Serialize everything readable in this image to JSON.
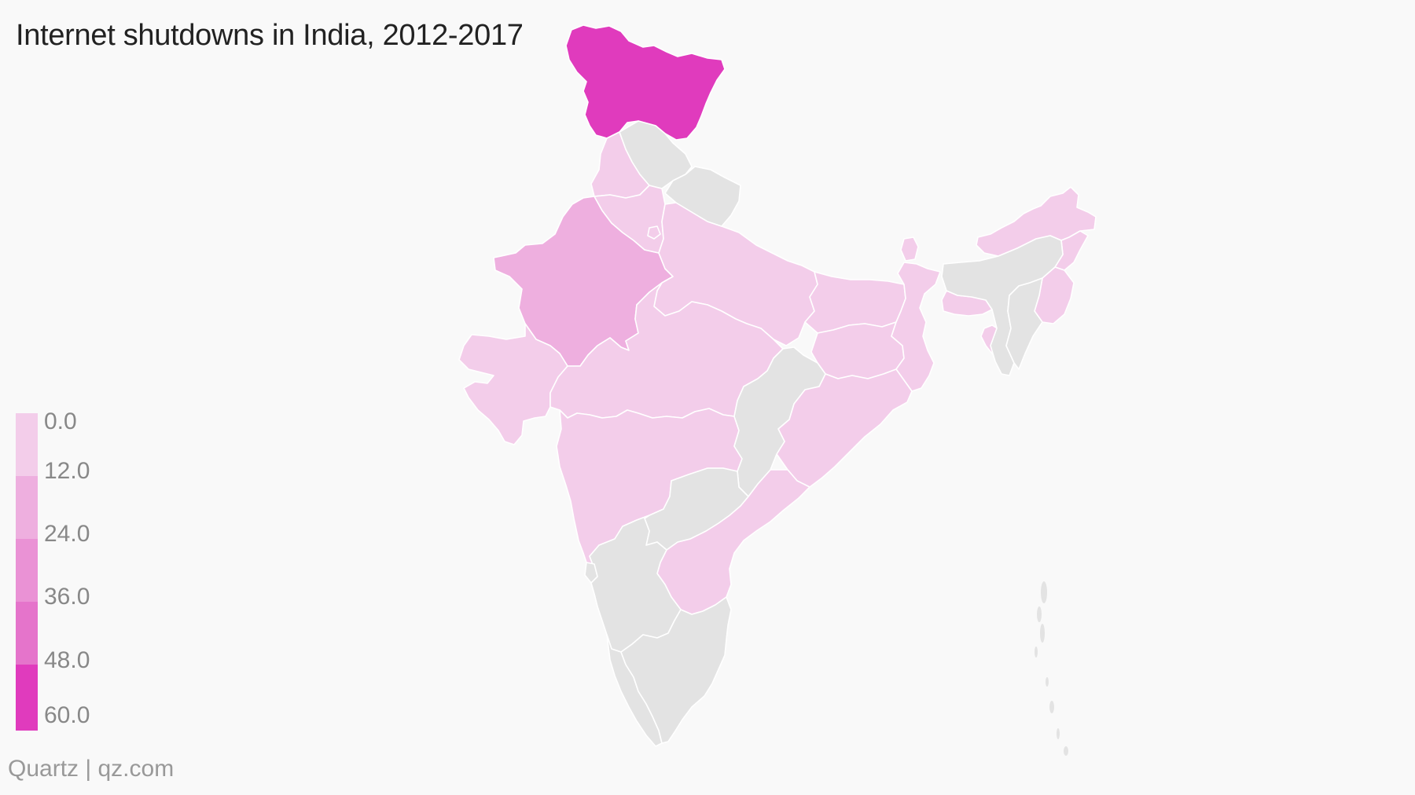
{
  "title": "Internet shutdowns in India, 2012-2017",
  "source": "Quartz | qz.com",
  "colors": {
    "background": "#f9f9f9",
    "no_data": "#e3e3e3",
    "border": "#ffffff",
    "bins": [
      "#f3cdea",
      "#eeafdf",
      "#ea92d5",
      "#e574cb",
      "#e03bbd"
    ]
  },
  "legend": {
    "ticks": [
      "0.0",
      "12.0",
      "24.0",
      "36.0",
      "48.0",
      "60.0"
    ]
  },
  "map_data": {
    "type": "choropleth",
    "scale_domain": [
      0,
      60
    ],
    "regions": [
      {
        "name": "Jammu and Kashmir",
        "bin": 4
      },
      {
        "name": "Rajasthan",
        "bin": 1
      },
      {
        "name": "Punjab",
        "bin": 0
      },
      {
        "name": "Haryana",
        "bin": 0
      },
      {
        "name": "Delhi",
        "bin": 0
      },
      {
        "name": "Uttar Pradesh",
        "bin": 0
      },
      {
        "name": "Bihar",
        "bin": 0
      },
      {
        "name": "Gujarat",
        "bin": 0
      },
      {
        "name": "Madhya Pradesh",
        "bin": 0
      },
      {
        "name": "Jharkhand",
        "bin": 0
      },
      {
        "name": "West Bengal",
        "bin": 0
      },
      {
        "name": "Odisha",
        "bin": 0
      },
      {
        "name": "Maharashtra",
        "bin": 0
      },
      {
        "name": "Andhra Pradesh",
        "bin": 0
      },
      {
        "name": "Sikkim",
        "bin": 0
      },
      {
        "name": "Meghalaya",
        "bin": 0
      },
      {
        "name": "Arunachal Pradesh",
        "bin": 0
      },
      {
        "name": "Nagaland",
        "bin": 0
      },
      {
        "name": "Manipur",
        "bin": 0
      },
      {
        "name": "Tripura",
        "bin": 0
      },
      {
        "name": "Himachal Pradesh",
        "bin": null
      },
      {
        "name": "Uttarakhand",
        "bin": null
      },
      {
        "name": "Assam",
        "bin": null
      },
      {
        "name": "Mizoram",
        "bin": null
      },
      {
        "name": "Chhattisgarh",
        "bin": null
      },
      {
        "name": "Telangana",
        "bin": null
      },
      {
        "name": "Karnataka",
        "bin": null
      },
      {
        "name": "Goa",
        "bin": null
      },
      {
        "name": "Kerala",
        "bin": null
      },
      {
        "name": "Tamil Nadu",
        "bin": null
      },
      {
        "name": "Andaman and Nicobar Islands",
        "bin": null
      }
    ]
  }
}
